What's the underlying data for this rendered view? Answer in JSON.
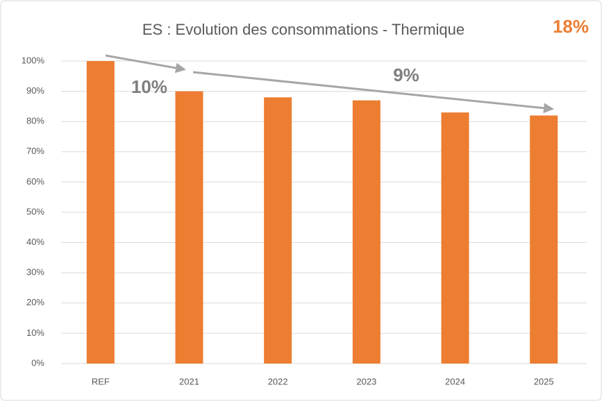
{
  "chart_data": {
    "type": "bar",
    "title": "ES : Evolution des consommations - Thermique",
    "categories": [
      "REF",
      "2021",
      "2022",
      "2023",
      "2024",
      "2025"
    ],
    "values": [
      100,
      90,
      88,
      87,
      83,
      82
    ],
    "color": "#ed7d31",
    "ylim": [
      0,
      100
    ],
    "yticks": [
      {
        "value": 0,
        "label": "0%"
      },
      {
        "value": 10,
        "label": "10%"
      },
      {
        "value": 20,
        "label": "20%"
      },
      {
        "value": 30,
        "label": "30%"
      },
      {
        "value": 40,
        "label": "40%"
      },
      {
        "value": 50,
        "label": "50%"
      },
      {
        "value": 60,
        "label": "60%"
      },
      {
        "value": 70,
        "label": "70%"
      },
      {
        "value": 80,
        "label": "80%"
      },
      {
        "value": 90,
        "label": "90%"
      },
      {
        "value": 100,
        "label": "100%"
      }
    ],
    "grid": true,
    "annotations": [
      "10%",
      "9%",
      "18%"
    ]
  }
}
